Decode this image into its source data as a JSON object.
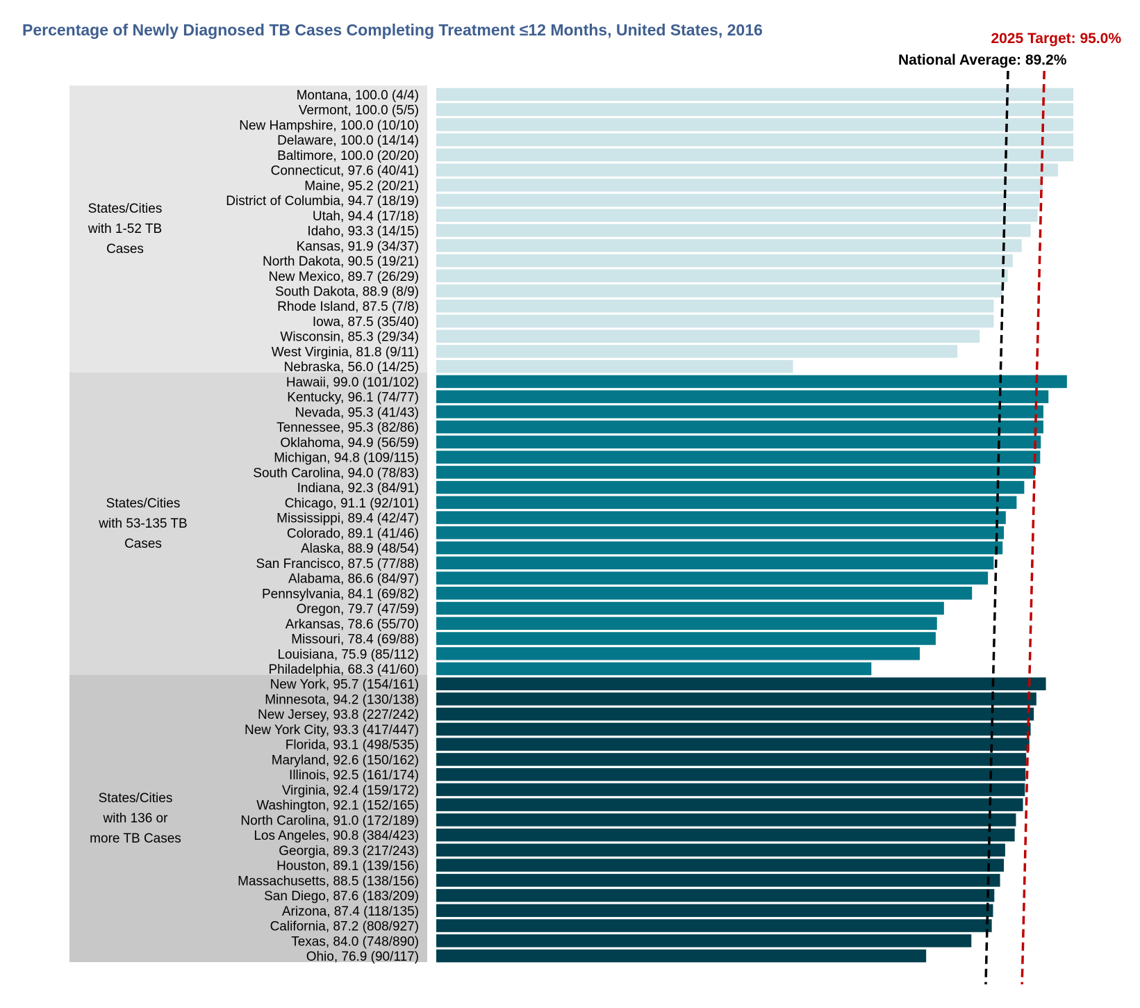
{
  "chart_data": {
    "type": "bar",
    "orientation": "horizontal",
    "title": "Percentage of Newly Diagnosed TB Cases Completing Treatment ≤12 Months, United States, 2016",
    "xlabel": "",
    "ylabel": "",
    "xlim": [
      0,
      100
    ],
    "grid": false,
    "reference_lines": [
      {
        "name": "National Average",
        "label": "National Average: 89.2%",
        "value": 89.2,
        "color": "#000000",
        "style": "dashed"
      },
      {
        "name": "2025 Target",
        "label": "2025 Target: 95.0%",
        "value": 95.0,
        "color": "#c00000",
        "style": "dashed"
      }
    ],
    "groups": [
      {
        "label": "States/Cities with 1-52 TB Cases",
        "label_lines": [
          "States/Cities",
          "with 1-52 TB",
          "Cases"
        ],
        "color": "#cde4e8",
        "bars": [
          {
            "label": "Montana, 100.0 (4/4)",
            "value": 100.0
          },
          {
            "label": "Vermont, 100.0 (5/5)",
            "value": 100.0
          },
          {
            "label": "New Hampshire, 100.0 (10/10)",
            "value": 100.0
          },
          {
            "label": "Delaware, 100.0 (14/14)",
            "value": 100.0
          },
          {
            "label": "Baltimore, 100.0 (20/20)",
            "value": 100.0
          },
          {
            "label": "Connecticut, 97.6 (40/41)",
            "value": 97.6
          },
          {
            "label": "Maine, 95.2 (20/21)",
            "value": 95.2
          },
          {
            "label": "District of Columbia, 94.7 (18/19)",
            "value": 94.7
          },
          {
            "label": "Utah, 94.4 (17/18)",
            "value": 94.4
          },
          {
            "label": "Idaho, 93.3 (14/15)",
            "value": 93.3
          },
          {
            "label": "Kansas, 91.9 (34/37)",
            "value": 91.9
          },
          {
            "label": "North Dakota, 90.5 (19/21)",
            "value": 90.5
          },
          {
            "label": "New Mexico, 89.7 (26/29)",
            "value": 89.7
          },
          {
            "label": "South Dakota, 88.9 (8/9)",
            "value": 88.9
          },
          {
            "label": "Rhode Island, 87.5 (7/8)",
            "value": 87.5
          },
          {
            "label": "Iowa, 87.5 (35/40)",
            "value": 87.5
          },
          {
            "label": "Wisconsin, 85.3 (29/34)",
            "value": 85.3
          },
          {
            "label": "West Virginia, 81.8 (9/11)",
            "value": 81.8
          },
          {
            "label": "Nebraska, 56.0 (14/25)",
            "value": 56.0
          }
        ]
      },
      {
        "label": "States/Cities with 53-135 TB Cases",
        "label_lines": [
          "States/Cities",
          "with 53-135 TB",
          "Cases"
        ],
        "color": "#04788a",
        "bars": [
          {
            "label": "Hawaii, 99.0 (101/102)",
            "value": 99.0
          },
          {
            "label": "Kentucky, 96.1 (74/77)",
            "value": 96.1
          },
          {
            "label": "Nevada, 95.3 (41/43)",
            "value": 95.3
          },
          {
            "label": "Tennessee, 95.3 (82/86)",
            "value": 95.3
          },
          {
            "label": "Oklahoma, 94.9 (56/59)",
            "value": 94.9
          },
          {
            "label": "Michigan, 94.8 (109/115)",
            "value": 94.8
          },
          {
            "label": "South Carolina, 94.0 (78/83)",
            "value": 94.0
          },
          {
            "label": "Indiana, 92.3 (84/91)",
            "value": 92.3
          },
          {
            "label": "Chicago, 91.1 (92/101)",
            "value": 91.1
          },
          {
            "label": "Mississippi, 89.4 (42/47)",
            "value": 89.4
          },
          {
            "label": "Colorado, 89.1 (41/46)",
            "value": 89.1
          },
          {
            "label": "Alaska, 88.9 (48/54)",
            "value": 88.9
          },
          {
            "label": "San Francisco, 87.5 (77/88)",
            "value": 87.5
          },
          {
            "label": "Alabama, 86.6 (84/97)",
            "value": 86.6
          },
          {
            "label": "Pennsylvania, 84.1 (69/82)",
            "value": 84.1
          },
          {
            "label": "Oregon, 79.7 (47/59)",
            "value": 79.7
          },
          {
            "label": "Arkansas, 78.6 (55/70)",
            "value": 78.6
          },
          {
            "label": "Missouri, 78.4 (69/88)",
            "value": 78.4
          },
          {
            "label": "Louisiana, 75.9 (85/112)",
            "value": 75.9
          },
          {
            "label": "Philadelphia, 68.3 (41/60)",
            "value": 68.3
          }
        ]
      },
      {
        "label": "States/Cities with 136 or more TB Cases",
        "label_lines": [
          "States/Cities",
          "with 136 or",
          "more TB Cases"
        ],
        "color": "#013f4e",
        "bars": [
          {
            "label": "New York, 95.7 (154/161)",
            "value": 95.7
          },
          {
            "label": "Minnesota, 94.2 (130/138)",
            "value": 94.2
          },
          {
            "label": "New Jersey, 93.8 (227/242)",
            "value": 93.8
          },
          {
            "label": "New York City, 93.3 (417/447)",
            "value": 93.3
          },
          {
            "label": "Florida, 93.1 (498/535)",
            "value": 93.1
          },
          {
            "label": "Maryland, 92.6 (150/162)",
            "value": 92.6
          },
          {
            "label": "Illinois, 92.5 (161/174)",
            "value": 92.5
          },
          {
            "label": "Virginia, 92.4 (159/172)",
            "value": 92.4
          },
          {
            "label": "Washington, 92.1 (152/165)",
            "value": 92.1
          },
          {
            "label": "North Carolina, 91.0 (172/189)",
            "value": 91.0
          },
          {
            "label": "Los Angeles, 90.8 (384/423)",
            "value": 90.8
          },
          {
            "label": "Georgia, 89.3 (217/243)",
            "value": 89.3
          },
          {
            "label": "Houston, 89.1 (139/156)",
            "value": 89.1
          },
          {
            "label": "Massachusetts, 88.5 (138/156)",
            "value": 88.5
          },
          {
            "label": "San Diego, 87.6 (183/209)",
            "value": 87.6
          },
          {
            "label": "Arizona, 87.4 (118/135)",
            "value": 87.4
          },
          {
            "label": "California, 87.2 (808/927)",
            "value": 87.2
          },
          {
            "label": "Texas, 84.0 (748/890)",
            "value": 84.0
          },
          {
            "label": "Ohio, 76.9 (90/117)",
            "value": 76.9
          }
        ]
      }
    ]
  }
}
